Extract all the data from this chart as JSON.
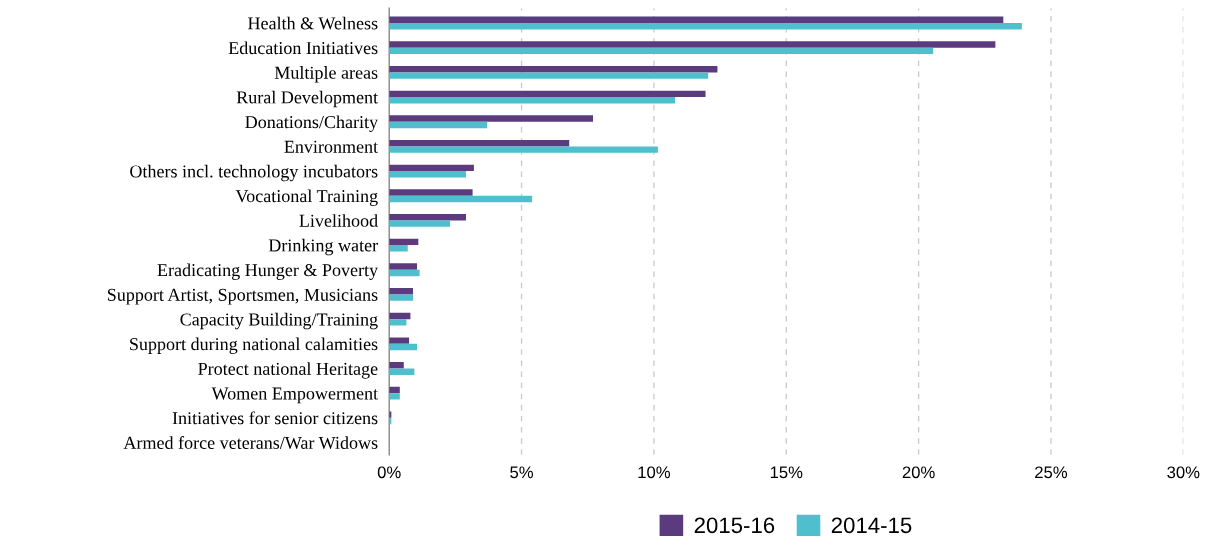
{
  "chart_data": {
    "type": "bar",
    "orientation": "horizontal",
    "categories": [
      "Health & Welness",
      "Education Initiatives",
      "Multiple areas",
      "Rural Development",
      "Donations/Charity",
      "Environment",
      "Others incl. technology incubators",
      "Vocational Training",
      "Livelihood",
      "Drinking water",
      "Eradicating Hunger & Poverty",
      "Support Artist, Sportsmen, Musicians",
      "Capacity Building/Training",
      "Support during national calamities",
      "Protect national Heritage",
      "Women Empowerment",
      "Initiatives for senior citizens",
      "Armed force veterans/War Widows"
    ],
    "series": [
      {
        "name": "2015-16",
        "color": "#5b3a7e",
        "values": [
          23.2,
          22.9,
          12.4,
          11.95,
          7.7,
          6.8,
          3.2,
          3.15,
          2.9,
          1.1,
          1.05,
          0.9,
          0.8,
          0.75,
          0.55,
          0.4,
          0.08,
          0.0
        ]
      },
      {
        "name": "2014-15",
        "color": "#4fbfce",
        "values": [
          23.9,
          20.55,
          12.05,
          10.8,
          3.7,
          10.15,
          2.9,
          5.4,
          2.3,
          0.7,
          1.15,
          0.9,
          0.65,
          1.05,
          0.95,
          0.4,
          0.08,
          0.0
        ]
      }
    ],
    "xlim": [
      0,
      30
    ],
    "xticks": [
      {
        "value": 0,
        "label": "0%"
      },
      {
        "value": 5,
        "label": "5%"
      },
      {
        "value": 10,
        "label": "10%"
      },
      {
        "value": 15,
        "label": "15%"
      },
      {
        "value": 20,
        "label": "20%"
      },
      {
        "value": 25,
        "label": "25%"
      },
      {
        "value": 30,
        "label": "30%"
      }
    ],
    "grid": "x",
    "legend": "bottom"
  }
}
